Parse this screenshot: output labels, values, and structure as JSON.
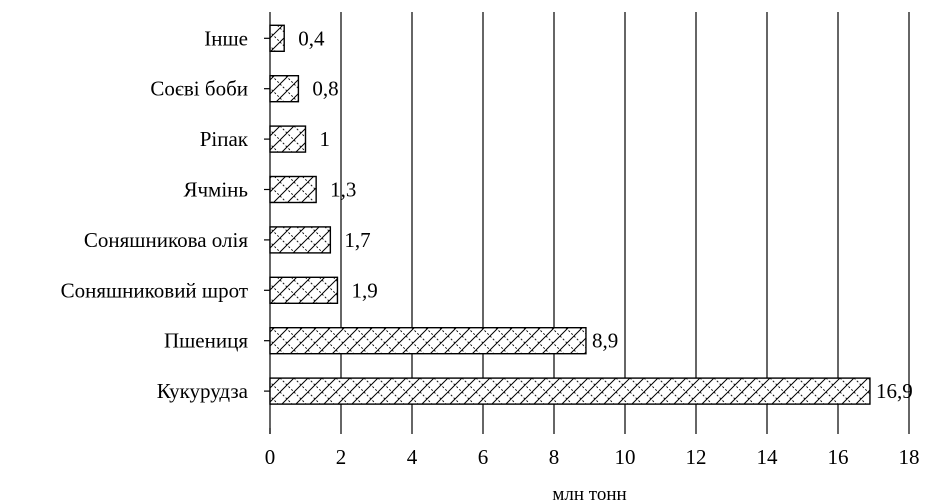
{
  "chart_data": {
    "type": "bar",
    "orientation": "horizontal",
    "categories": [
      "Інше",
      "Соєві боби",
      "Ріпак",
      "Ячмінь",
      "Соняшникова олія",
      "Соняшниковий шрот",
      "Пшениця",
      "Кукурудза"
    ],
    "values": [
      0.4,
      0.8,
      1,
      1.3,
      1.7,
      1.9,
      8.9,
      16.9
    ],
    "value_labels": [
      "0,4",
      "0,8",
      "1",
      "1,3",
      "1,7",
      "1,9",
      "8,9",
      "16,9"
    ],
    "xlabel": "млн тонн",
    "xlim": [
      0,
      18
    ],
    "xticks": [
      0,
      2,
      4,
      6,
      8,
      10,
      12,
      14,
      16,
      18
    ],
    "grid": "vertical",
    "legend": "none",
    "colors": {
      "bar_fill": "#ffffff",
      "hatch": "#000000",
      "grid": "#000000"
    }
  }
}
